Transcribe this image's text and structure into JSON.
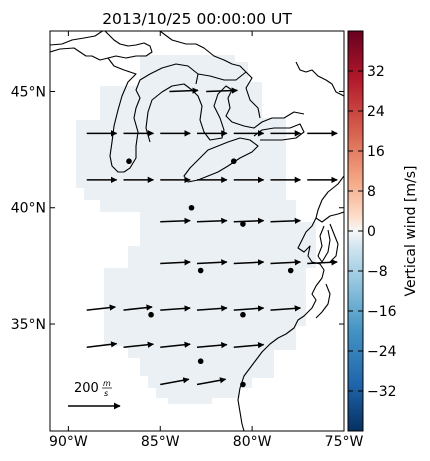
{
  "title": "2013/10/25 00:00:00 UT",
  "map": {
    "lon_range": [
      -91,
      -75
    ],
    "lat_range": [
      30.4,
      47.6
    ],
    "lon_ticks": [
      {
        "value": -90,
        "label": "90°W"
      },
      {
        "value": -85,
        "label": "85°W"
      },
      {
        "value": -80,
        "label": "80°W"
      },
      {
        "value": -75,
        "label": "75°W"
      }
    ],
    "lat_ticks": [
      {
        "value": 45,
        "label": "45°N"
      },
      {
        "value": 40,
        "label": "40°N"
      },
      {
        "value": 35,
        "label": "35°N"
      }
    ],
    "shaded_color": "#eaf0f3",
    "coast_color": "#000000"
  },
  "scale_arrow": {
    "label": "200",
    "unit_num": "m",
    "unit_den": "s",
    "magnitude": 200
  },
  "colorbar": {
    "label": "Vertical wind [m/s]",
    "range": [
      -40,
      40
    ],
    "ticks": [
      -32,
      -24,
      -16,
      -8,
      0,
      8,
      16,
      24,
      32
    ],
    "tick_labels": [
      "−32",
      "−24",
      "−16",
      "−8",
      "0",
      "8",
      "16",
      "24",
      "32"
    ],
    "colormap": "RdBu_r"
  },
  "chart_data": {
    "type": "scatter",
    "title": "2013/10/25 00:00:00 UT",
    "wind_vectors": [
      {
        "lon": -84.5,
        "lat": 45.0,
        "u": 110,
        "v": 4
      },
      {
        "lon": -82.5,
        "lat": 45.0,
        "u": 120,
        "v": 4
      },
      {
        "lon": -89.0,
        "lat": 43.2,
        "u": 115,
        "v": 0
      },
      {
        "lon": -87.0,
        "lat": 43.2,
        "u": 115,
        "v": 0
      },
      {
        "lon": -85.0,
        "lat": 43.2,
        "u": 115,
        "v": 0
      },
      {
        "lon": -83.0,
        "lat": 43.2,
        "u": 115,
        "v": 0
      },
      {
        "lon": -81.0,
        "lat": 43.2,
        "u": 115,
        "v": 0
      },
      {
        "lon": -79.0,
        "lat": 43.2,
        "u": 115,
        "v": 0
      },
      {
        "lon": -77.0,
        "lat": 43.2,
        "u": 115,
        "v": 0
      },
      {
        "lon": -89.0,
        "lat": 41.2,
        "u": 115,
        "v": 0
      },
      {
        "lon": -87.0,
        "lat": 41.2,
        "u": 115,
        "v": 0
      },
      {
        "lon": -85.0,
        "lat": 41.2,
        "u": 115,
        "v": 0
      },
      {
        "lon": -83.0,
        "lat": 41.2,
        "u": 115,
        "v": 0
      },
      {
        "lon": -81.0,
        "lat": 41.2,
        "u": 115,
        "v": 0
      },
      {
        "lon": -79.0,
        "lat": 41.2,
        "u": 115,
        "v": 0
      },
      {
        "lon": -77.0,
        "lat": 41.2,
        "u": 115,
        "v": 0
      },
      {
        "lon": -85.0,
        "lat": 39.4,
        "u": 115,
        "v": 4
      },
      {
        "lon": -83.0,
        "lat": 39.4,
        "u": 115,
        "v": 4
      },
      {
        "lon": -81.0,
        "lat": 39.4,
        "u": 115,
        "v": 4
      },
      {
        "lon": -79.0,
        "lat": 39.4,
        "u": 115,
        "v": 4
      },
      {
        "lon": -85.0,
        "lat": 37.6,
        "u": 115,
        "v": 6
      },
      {
        "lon": -83.0,
        "lat": 37.6,
        "u": 115,
        "v": 6
      },
      {
        "lon": -81.0,
        "lat": 37.6,
        "u": 115,
        "v": 6
      },
      {
        "lon": -79.0,
        "lat": 37.6,
        "u": 115,
        "v": 6
      },
      {
        "lon": -77.0,
        "lat": 37.6,
        "u": 115,
        "v": 6
      },
      {
        "lon": -89.0,
        "lat": 35.6,
        "u": 110,
        "v": 12
      },
      {
        "lon": -87.0,
        "lat": 35.6,
        "u": 110,
        "v": 12
      },
      {
        "lon": -85.0,
        "lat": 35.6,
        "u": 115,
        "v": 8
      },
      {
        "lon": -83.0,
        "lat": 35.6,
        "u": 115,
        "v": 8
      },
      {
        "lon": -81.0,
        "lat": 35.6,
        "u": 115,
        "v": 8
      },
      {
        "lon": -79.0,
        "lat": 35.6,
        "u": 115,
        "v": 8
      },
      {
        "lon": -89.0,
        "lat": 34.0,
        "u": 115,
        "v": 14
      },
      {
        "lon": -87.0,
        "lat": 34.0,
        "u": 115,
        "v": 12
      },
      {
        "lon": -85.0,
        "lat": 34.0,
        "u": 115,
        "v": 12
      },
      {
        "lon": -83.0,
        "lat": 34.0,
        "u": 115,
        "v": 10
      },
      {
        "lon": -81.0,
        "lat": 34.0,
        "u": 115,
        "v": 10
      },
      {
        "lon": -85.0,
        "lat": 32.4,
        "u": 110,
        "v": 20
      },
      {
        "lon": -83.0,
        "lat": 32.4,
        "u": 110,
        "v": 20
      }
    ],
    "stations": [
      {
        "lon": -86.7,
        "lat": 42.0
      },
      {
        "lon": -81.0,
        "lat": 42.0
      },
      {
        "lon": -83.3,
        "lat": 40.0
      },
      {
        "lon": -80.5,
        "lat": 39.3
      },
      {
        "lon": -82.8,
        "lat": 37.3
      },
      {
        "lon": -77.9,
        "lat": 37.3
      },
      {
        "lon": -85.5,
        "lat": 35.4
      },
      {
        "lon": -80.5,
        "lat": 35.4
      },
      {
        "lon": -82.8,
        "lat": 33.4
      },
      {
        "lon": -80.5,
        "lat": 32.4
      }
    ]
  }
}
